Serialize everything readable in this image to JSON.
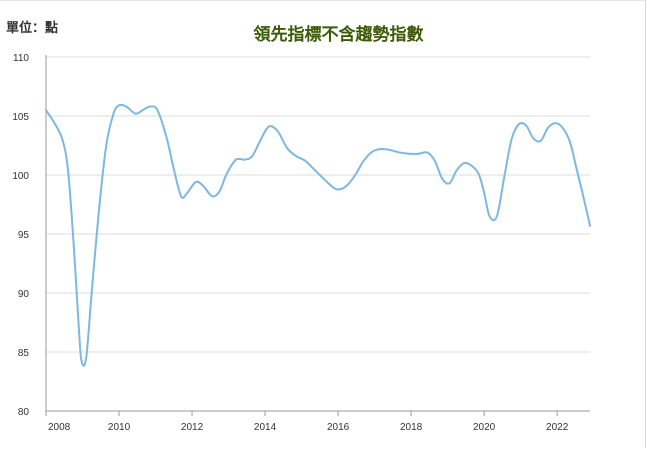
{
  "header": {
    "unit_label": "單位：點",
    "title": "領先指標不含趨勢指數"
  },
  "colors": {
    "line": "#7db8e0",
    "title": "#3d5a05",
    "grid": "#dcdcdc",
    "axis": "#999999"
  },
  "chart_data": {
    "type": "line",
    "title": "領先指標不含趨勢指數",
    "xlabel": "",
    "ylabel": "單位：點",
    "xlim": [
      2008,
      2022.9
    ],
    "ylim": [
      80,
      110
    ],
    "x_ticks": [
      "2008",
      "2010",
      "2012",
      "2014",
      "2016",
      "2018",
      "2020",
      "2022"
    ],
    "y_ticks": [
      "80",
      "85",
      "90",
      "95",
      "100",
      "105",
      "110"
    ],
    "grid": "horizontal",
    "series": [
      {
        "values": [
          [
            2008.0,
            105.5
          ],
          [
            2008.25,
            104.3
          ],
          [
            2008.45,
            103.0
          ],
          [
            2008.6,
            100.5
          ],
          [
            2008.75,
            94.5
          ],
          [
            2008.88,
            88.0
          ],
          [
            2008.97,
            84.3
          ],
          [
            2009.1,
            84.5
          ],
          [
            2009.25,
            90.0
          ],
          [
            2009.45,
            97.0
          ],
          [
            2009.65,
            102.5
          ],
          [
            2009.85,
            105.2
          ],
          [
            2010.0,
            105.9
          ],
          [
            2010.2,
            105.8
          ],
          [
            2010.45,
            105.2
          ],
          [
            2010.65,
            105.5
          ],
          [
            2010.85,
            105.8
          ],
          [
            2011.05,
            105.5
          ],
          [
            2011.3,
            103.2
          ],
          [
            2011.5,
            100.5
          ],
          [
            2011.7,
            98.2
          ],
          [
            2011.85,
            98.4
          ],
          [
            2012.1,
            99.4
          ],
          [
            2012.3,
            99.1
          ],
          [
            2012.55,
            98.2
          ],
          [
            2012.75,
            98.6
          ],
          [
            2012.95,
            100.1
          ],
          [
            2013.2,
            101.3
          ],
          [
            2013.45,
            101.3
          ],
          [
            2013.65,
            101.6
          ],
          [
            2013.85,
            102.8
          ],
          [
            2014.1,
            104.1
          ],
          [
            2014.35,
            103.7
          ],
          [
            2014.6,
            102.3
          ],
          [
            2014.85,
            101.6
          ],
          [
            2015.1,
            101.2
          ],
          [
            2015.4,
            100.3
          ],
          [
            2015.7,
            99.4
          ],
          [
            2015.95,
            98.8
          ],
          [
            2016.2,
            99.0
          ],
          [
            2016.45,
            99.9
          ],
          [
            2016.7,
            101.2
          ],
          [
            2016.95,
            102.0
          ],
          [
            2017.2,
            102.2
          ],
          [
            2017.45,
            102.1
          ],
          [
            2017.7,
            101.9
          ],
          [
            2017.95,
            101.8
          ],
          [
            2018.2,
            101.8
          ],
          [
            2018.45,
            101.9
          ],
          [
            2018.65,
            101.2
          ],
          [
            2018.85,
            99.7
          ],
          [
            2019.05,
            99.3
          ],
          [
            2019.25,
            100.4
          ],
          [
            2019.45,
            101.0
          ],
          [
            2019.65,
            100.8
          ],
          [
            2019.85,
            100.1
          ],
          [
            2020.0,
            98.5
          ],
          [
            2020.15,
            96.5
          ],
          [
            2020.35,
            96.5
          ],
          [
            2020.55,
            99.8
          ],
          [
            2020.75,
            103.0
          ],
          [
            2020.95,
            104.3
          ],
          [
            2021.15,
            104.2
          ],
          [
            2021.35,
            103.1
          ],
          [
            2021.55,
            102.9
          ],
          [
            2021.75,
            104.0
          ],
          [
            2021.95,
            104.4
          ],
          [
            2022.15,
            104.0
          ],
          [
            2022.35,
            102.8
          ],
          [
            2022.55,
            100.3
          ],
          [
            2022.7,
            98.4
          ],
          [
            2022.9,
            95.7
          ]
        ]
      }
    ]
  }
}
